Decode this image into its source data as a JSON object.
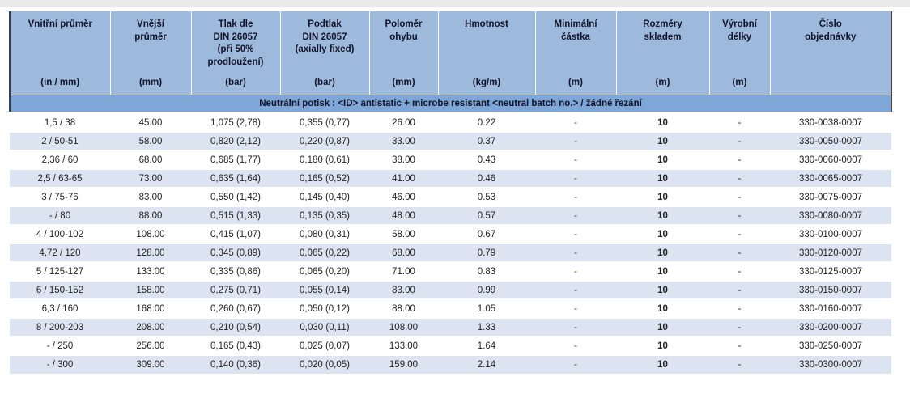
{
  "colors": {
    "header_bg": "#9db9dc",
    "banner_bg": "#7ea6d6",
    "row_alt_bg": "#dce4f1",
    "side_border": "#3e3e4a",
    "header_text": "#131329",
    "data_text": "#222222"
  },
  "table": {
    "columns": [
      {
        "label": "Vnitřní průměr",
        "unit": "(in / mm)"
      },
      {
        "label": "Vnější\nprůměr",
        "unit": "(mm)"
      },
      {
        "label": "Tlak dle\nDIN 26057\n(při 50%\nprodloužení)",
        "unit": "(bar)"
      },
      {
        "label": "Podtlak\nDIN 26057\n(axially fixed)",
        "unit": "(bar)"
      },
      {
        "label": "Poloměr\nohybu",
        "unit": "(mm)"
      },
      {
        "label": "Hmotnost",
        "unit": "(kg/m)"
      },
      {
        "label": "Minimální\nčástka",
        "unit": "(m)"
      },
      {
        "label": "Rozměry\nskladem",
        "unit": "(m)"
      },
      {
        "label": "Výrobní\ndélky",
        "unit": "(m)"
      },
      {
        "label": "Číslo\nobjednávky",
        "unit": ""
      }
    ],
    "banner": "Neutrální potisk : <ID> antistatic + microbe resistant <neutral batch no.> / žádné řezání",
    "rows": [
      [
        "1,5 / 38",
        "45.00",
        "1,075 (2,78)",
        "0,355 (0,77)",
        "26.00",
        "0.22",
        "-",
        "10",
        "-",
        "330-0038-0007"
      ],
      [
        "2 / 50-51",
        "58.00",
        "0,820 (2,12)",
        "0,220 (0,87)",
        "33.00",
        "0.37",
        "-",
        "10",
        "-",
        "330-0050-0007"
      ],
      [
        "2,36 / 60",
        "68.00",
        "0,685 (1,77)",
        "0,180 (0,61)",
        "38.00",
        "0.43",
        "-",
        "10",
        "-",
        "330-0060-0007"
      ],
      [
        "2,5 / 63-65",
        "73.00",
        "0,635 (1,64)",
        "0,165 (0,52)",
        "41.00",
        "0.46",
        "-",
        "10",
        "-",
        "330-0065-0007"
      ],
      [
        "3 / 75-76",
        "83.00",
        "0,550 (1,42)",
        "0,145 (0,40)",
        "46.00",
        "0.53",
        "-",
        "10",
        "-",
        "330-0075-0007"
      ],
      [
        "- / 80",
        "88.00",
        "0,515 (1,33)",
        "0,135 (0,35)",
        "48.00",
        "0.57",
        "-",
        "10",
        "-",
        "330-0080-0007"
      ],
      [
        "4 / 100-102",
        "108.00",
        "0,415 (1,07)",
        "0,080 (0,31)",
        "58.00",
        "0.67",
        "-",
        "10",
        "-",
        "330-0100-0007"
      ],
      [
        "4,72 / 120",
        "128.00",
        "0,345 (0,89)",
        "0,065 (0,22)",
        "68.00",
        "0.79",
        "-",
        "10",
        "-",
        "330-0120-0007"
      ],
      [
        "5 / 125-127",
        "133.00",
        "0,335 (0,86)",
        "0,065 (0,20)",
        "71.00",
        "0.83",
        "-",
        "10",
        "-",
        "330-0125-0007"
      ],
      [
        "6 / 150-152",
        "158.00",
        "0,275 (0,71)",
        "0,055 (0,14)",
        "83.00",
        "0.99",
        "-",
        "10",
        "-",
        "330-0150-0007"
      ],
      [
        "6,3 / 160",
        "168.00",
        "0,260 (0,67)",
        "0,050 (0,12)",
        "88.00",
        "1.05",
        "-",
        "10",
        "-",
        "330-0160-0007"
      ],
      [
        "8 / 200-203",
        "208.00",
        "0,210 (0,54)",
        "0,030 (0,11)",
        "108.00",
        "1.33",
        "-",
        "10",
        "-",
        "330-0200-0007"
      ],
      [
        "- / 250",
        "256.00",
        "0,165 (0,43)",
        "0,025 (0,07)",
        "133.00",
        "1.64",
        "-",
        "10",
        "-",
        "330-0250-0007"
      ],
      [
        "- / 300",
        "309.00",
        "0,140 (0,36)",
        "0,020 (0,05)",
        "159.00",
        "2.14",
        "-",
        "10",
        "-",
        "330-0300-0007"
      ]
    ]
  }
}
